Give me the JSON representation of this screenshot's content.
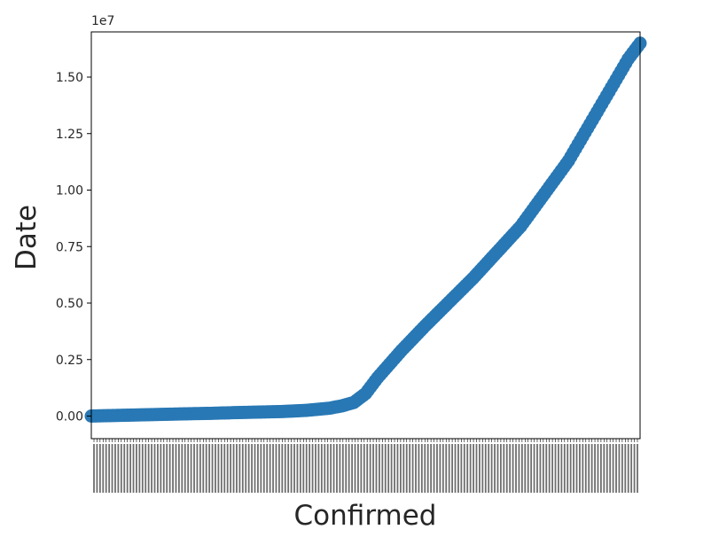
{
  "chart_data": {
    "type": "scatter",
    "title": "",
    "xlabel": "Confirmed",
    "ylabel": "Date",
    "y_offset_label": "1e7",
    "ylim": [
      -0.1,
      1.7
    ],
    "yticks": [
      0.0,
      0.25,
      0.5,
      0.75,
      1.0,
      1.25,
      1.5
    ],
    "ytick_labels": [
      "0.00",
      "0.25",
      "0.50",
      "0.75",
      "1.00",
      "1.25",
      "1.50"
    ],
    "x_categories_count": 180,
    "x_tick_labels_note": "dense rotated date labels, illegible",
    "grid": false,
    "legend": "none",
    "marker_color": "#2878b5",
    "series": [
      {
        "curve_points": [
          [
            0,
            0.0
          ],
          [
            20,
            0.005
          ],
          [
            40,
            0.01
          ],
          [
            50,
            0.012
          ],
          [
            60,
            0.015
          ],
          [
            80,
            0.02
          ],
          [
            90,
            0.025
          ],
          [
            100,
            0.035
          ],
          [
            105,
            0.045
          ],
          [
            110,
            0.06
          ],
          [
            115,
            0.1
          ],
          [
            120,
            0.17
          ],
          [
            130,
            0.29
          ],
          [
            140,
            0.4
          ],
          [
            160,
            0.61
          ],
          [
            180,
            0.84
          ],
          [
            200,
            1.13
          ],
          [
            220,
            1.49
          ],
          [
            225,
            1.58
          ],
          [
            230,
            1.65
          ]
        ]
      }
    ]
  }
}
